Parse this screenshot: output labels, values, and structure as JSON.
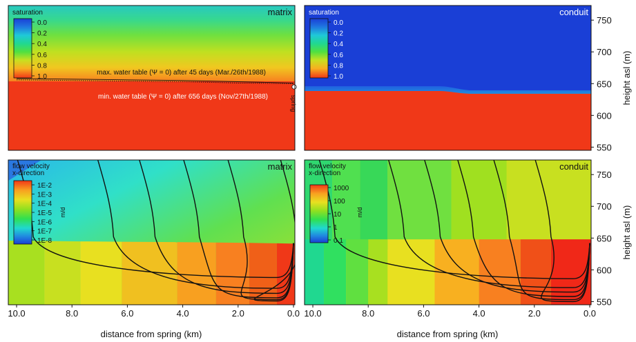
{
  "x_axis": {
    "label": "distance from spring (km)",
    "ticks": [
      10.0,
      8.0,
      6.0,
      4.0,
      2.0,
      0.0
    ],
    "tick_labels": [
      "10.0",
      "8.0",
      "6.0",
      "4.0",
      "2.0",
      "0.0"
    ],
    "xlim": [
      10.3,
      -0.05
    ]
  },
  "y_axis": {
    "label": "height asl (m)",
    "ticks": [
      550,
      600,
      650,
      700,
      750
    ],
    "tick_labels": [
      "550",
      "600",
      "650",
      "700",
      "750"
    ],
    "ylim": [
      545,
      773
    ]
  },
  "panels": {
    "top_left": {
      "title": "matrix",
      "legend_title": "saturation",
      "legend_labels": [
        "0.0",
        "0.2",
        "0.4",
        "0.6",
        "0.8",
        "1.0"
      ],
      "annotation_max": "max. water table (Ψ = 0) after 45 days (Mar./26th/1988)",
      "annotation_min": "min. water table (Ψ = 0) after 656 days (Nov/27th/1988)",
      "annotation_spring": "spring"
    },
    "top_right": {
      "title": "conduit",
      "legend_title": "saturation",
      "legend_labels": [
        "0.0",
        "0.2",
        "0.4",
        "0.6",
        "0.8",
        "1.0"
      ]
    },
    "bottom_left": {
      "title": "matrix",
      "legend_title_1": "flow velocity",
      "legend_title_2": "x-direction",
      "legend_unit": "m/d",
      "legend_labels": [
        "1E-2",
        "1E-3",
        "1E-4",
        "1E-5",
        "1E-6",
        "1E-7",
        "1E-8"
      ]
    },
    "bottom_right": {
      "title": "conduit",
      "legend_title_1": "flow velocity",
      "legend_title_2": "x-direction",
      "legend_unit": "m/d",
      "legend_labels": [
        "1000",
        "100",
        "10",
        "1",
        "0.1"
      ]
    }
  },
  "chart_data": [
    {
      "type": "heatmap",
      "panel": "top_left",
      "quantity": "saturation",
      "color_scale": [
        "#1a3fd6",
        "#1f8be0",
        "#1fd6c8",
        "#34e05a",
        "#a8e020",
        "#e8e020",
        "#f8a020",
        "#f03818"
      ],
      "water_table_max_m": [
        [
          10.0,
          658
        ],
        [
          8.0,
          657
        ],
        [
          6.0,
          656
        ],
        [
          4.0,
          655
        ],
        [
          2.0,
          653
        ],
        [
          0.0,
          651
        ]
      ],
      "water_table_min_m": [
        [
          10.0,
          656
        ],
        [
          8.0,
          655
        ],
        [
          6.0,
          654
        ],
        [
          4.0,
          653
        ],
        [
          2.0,
          651
        ],
        [
          0.0,
          650
        ]
      ]
    },
    {
      "type": "heatmap",
      "panel": "top_right",
      "quantity": "saturation",
      "color_scale": [
        "#1a3fd6",
        "#1f8be0",
        "#1fd6c8",
        "#34e05a",
        "#a8e020",
        "#e8e020",
        "#f8a020",
        "#f03818"
      ],
      "saturated_top_m": [
        [
          10.0,
          646
        ],
        [
          5.0,
          646
        ],
        [
          4.0,
          644
        ],
        [
          0.0,
          643
        ]
      ]
    },
    {
      "type": "heatmap",
      "panel": "bottom_left",
      "quantity": "flow velocity x-direction (m/d)",
      "log10_range": [
        -8,
        -2
      ],
      "streamline_tops_x_km": [
        10.0,
        7.1,
        5.6,
        4.0,
        2.4,
        0.5
      ],
      "streamline_floor_y_m": [
        588,
        571,
        563,
        556,
        553,
        551
      ]
    },
    {
      "type": "heatmap",
      "panel": "bottom_right",
      "quantity": "flow velocity x-direction (m/d)",
      "log10_range": [
        -1,
        3
      ],
      "streamline_tops_x_km": [
        9.8,
        7.3,
        6.0,
        4.8,
        3.5,
        2.0
      ],
      "streamline_floor_y_m": [
        586,
        572,
        565,
        558,
        553,
        550
      ]
    }
  ]
}
